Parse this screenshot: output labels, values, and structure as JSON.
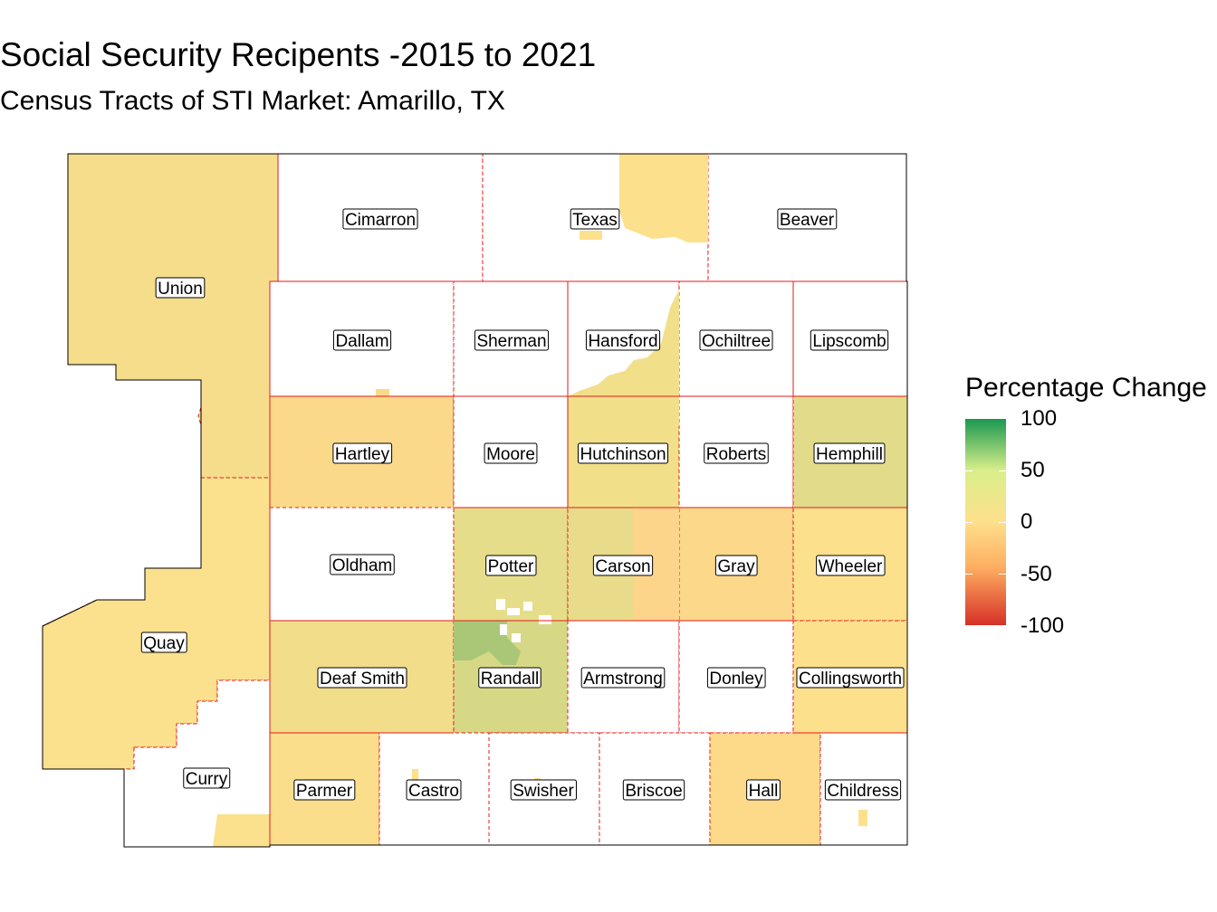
{
  "title": "Social Security Recipents -2015 to 2021",
  "subtitle": "Census Tracts of STI Market: Amarillo, TX",
  "legend": {
    "title": "Percentage Change",
    "ticks": [
      "100",
      "50",
      "0",
      "-50",
      "-100"
    ],
    "scale_colors": [
      "#1a9850",
      "#d9ef8b",
      "#fee08b",
      "#fdae61",
      "#d73027"
    ]
  },
  "colors": {
    "no_data": "#ffffff",
    "border_state": "#e41a1c",
    "outline": "#000000"
  },
  "counties": [
    {
      "name": "Union",
      "fill": "#f6dd8c"
    },
    {
      "name": "Quay",
      "fill": "#fbe08e"
    },
    {
      "name": "Curry",
      "fill": "#ffffff"
    },
    {
      "name": "Cimarron",
      "fill": "#ffffff"
    },
    {
      "name": "Texas",
      "fill": "#ffffff"
    },
    {
      "name": "Beaver",
      "fill": "#ffffff"
    },
    {
      "name": "Dallam",
      "fill": "#ffffff"
    },
    {
      "name": "Sherman",
      "fill": "#ffffff"
    },
    {
      "name": "Hansford",
      "fill": "#ffffff"
    },
    {
      "name": "Ochiltree",
      "fill": "#ffffff"
    },
    {
      "name": "Lipscomb",
      "fill": "#ffffff"
    },
    {
      "name": "Hartley",
      "fill": "#fbd98a"
    },
    {
      "name": "Moore",
      "fill": "#ffffff"
    },
    {
      "name": "Hutchinson",
      "fill": "#f2df8a"
    },
    {
      "name": "Roberts",
      "fill": "#ffffff"
    },
    {
      "name": "Hemphill",
      "fill": "#e2db8a"
    },
    {
      "name": "Oldham",
      "fill": "#ffffff"
    },
    {
      "name": "Potter",
      "fill": "#e6dd8a"
    },
    {
      "name": "Carson",
      "fill": "#e8dc8a"
    },
    {
      "name": "Gray",
      "fill": "#fbd88a"
    },
    {
      "name": "Wheeler",
      "fill": "#fde08c"
    },
    {
      "name": "Deaf Smith",
      "fill": "#f1dd8a"
    },
    {
      "name": "Randall",
      "fill": "#d6d886"
    },
    {
      "name": "Armstrong",
      "fill": "#ffffff"
    },
    {
      "name": "Donley",
      "fill": "#ffffff"
    },
    {
      "name": "Collingsworth",
      "fill": "#fde08c"
    },
    {
      "name": "Parmer",
      "fill": "#fbde8c"
    },
    {
      "name": "Castro",
      "fill": "#ffffff"
    },
    {
      "name": "Swisher",
      "fill": "#ffffff"
    },
    {
      "name": "Briscoe",
      "fill": "#ffffff"
    },
    {
      "name": "Hall",
      "fill": "#fdd98a"
    },
    {
      "name": "Childress",
      "fill": "#ffffff"
    }
  ]
}
